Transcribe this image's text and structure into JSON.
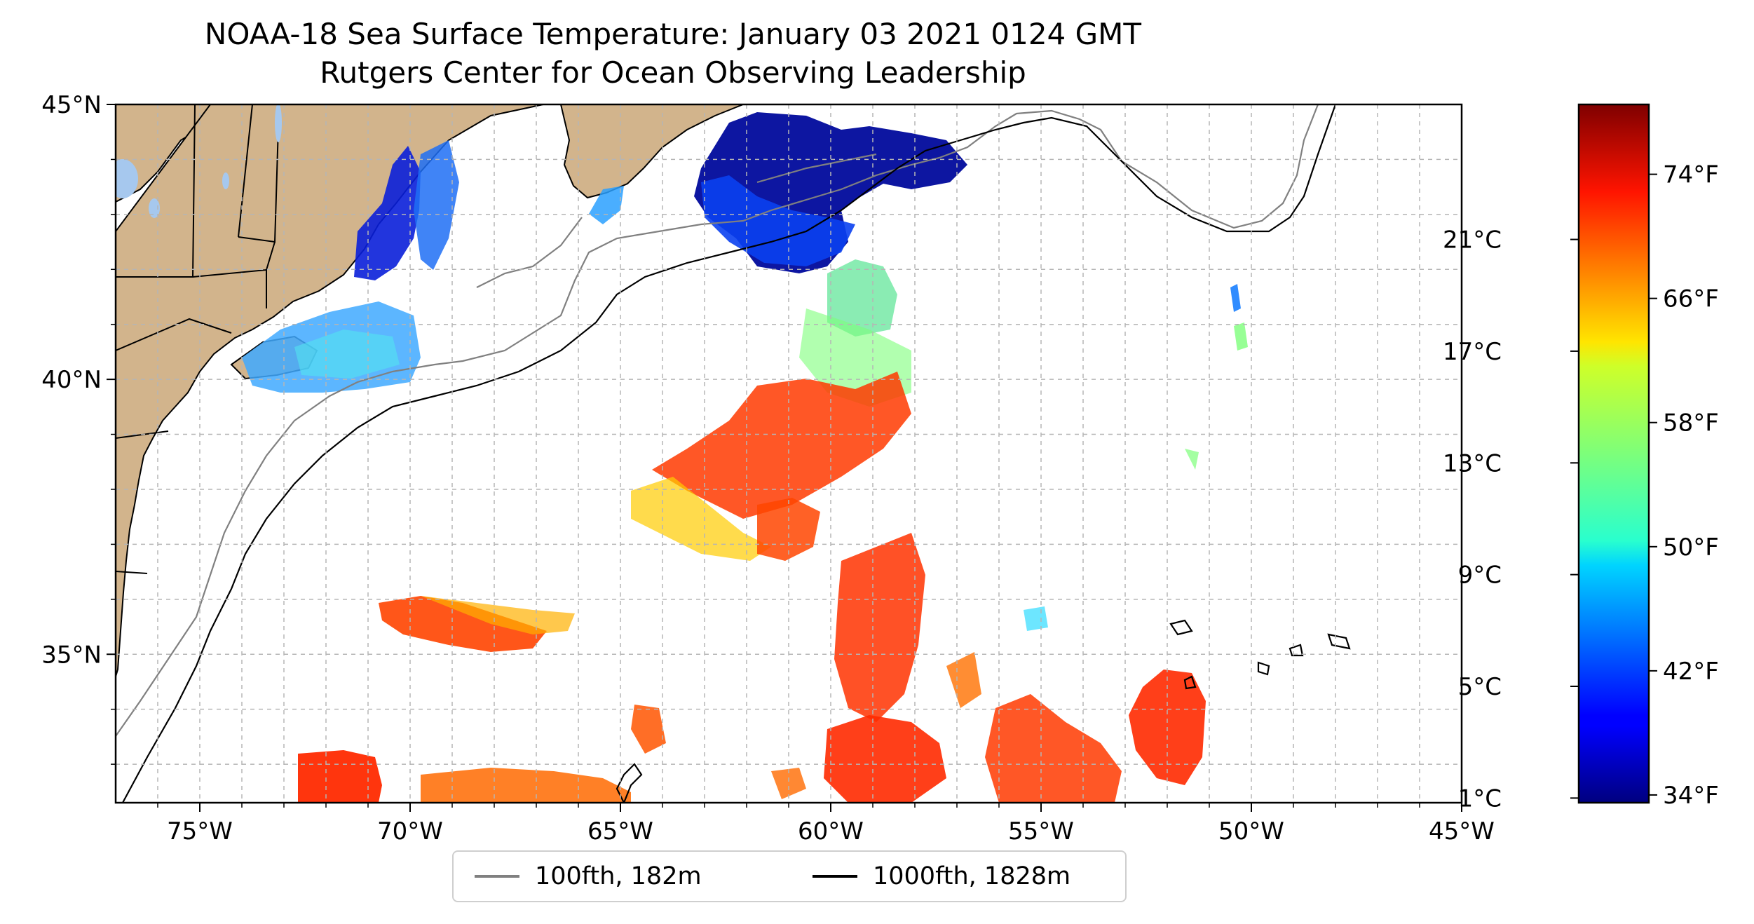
{
  "title": {
    "line1": "NOAA-18 Sea Surface Temperature: January 03 2021 0124 GMT",
    "line2": "Rutgers Center for Ocean Observing Leadership"
  },
  "map": {
    "lon_range": [
      -77,
      -45
    ],
    "lat_range": [
      32.3,
      45
    ],
    "lon_ticks": [
      {
        "value": -75,
        "label": "75°W"
      },
      {
        "value": -70,
        "label": "70°W"
      },
      {
        "value": -65,
        "label": "65°W"
      },
      {
        "value": -60,
        "label": "60°W"
      },
      {
        "value": -55,
        "label": "55°W"
      },
      {
        "value": -50,
        "label": "50°W"
      },
      {
        "value": -45,
        "label": "45°W"
      }
    ],
    "lat_ticks": [
      {
        "value": 45,
        "label": "45°N"
      },
      {
        "value": 40,
        "label": "40°N"
      },
      {
        "value": 35,
        "label": "35°N"
      }
    ],
    "grid": true,
    "land_color": "#d2b48c",
    "water_body_color": "#a6c8ee"
  },
  "legend": {
    "placement": "bottom-center",
    "items": [
      {
        "label": "100fth, 182m",
        "color": "#808080"
      },
      {
        "label": "1000fth, 1828m",
        "color": "#000000"
      }
    ]
  },
  "colorbar": {
    "colormap": "jet",
    "celsius_ticks": [
      {
        "value": 1,
        "label": "1°C"
      },
      {
        "value": 5,
        "label": "5°C"
      },
      {
        "value": 9,
        "label": "9°C"
      },
      {
        "value": 13,
        "label": "13°C"
      },
      {
        "value": 17,
        "label": "17°C"
      },
      {
        "value": 21,
        "label": "21°C"
      }
    ],
    "fahrenheit_ticks": [
      {
        "value": 34,
        "label": "34°F"
      },
      {
        "value": 42,
        "label": "42°F"
      },
      {
        "value": 50,
        "label": "50°F"
      },
      {
        "value": 58,
        "label": "58°F"
      },
      {
        "value": 66,
        "label": "66°F"
      },
      {
        "value": 74,
        "label": "74°F"
      }
    ],
    "range_f": [
      33.5,
      78.5
    ]
  }
}
